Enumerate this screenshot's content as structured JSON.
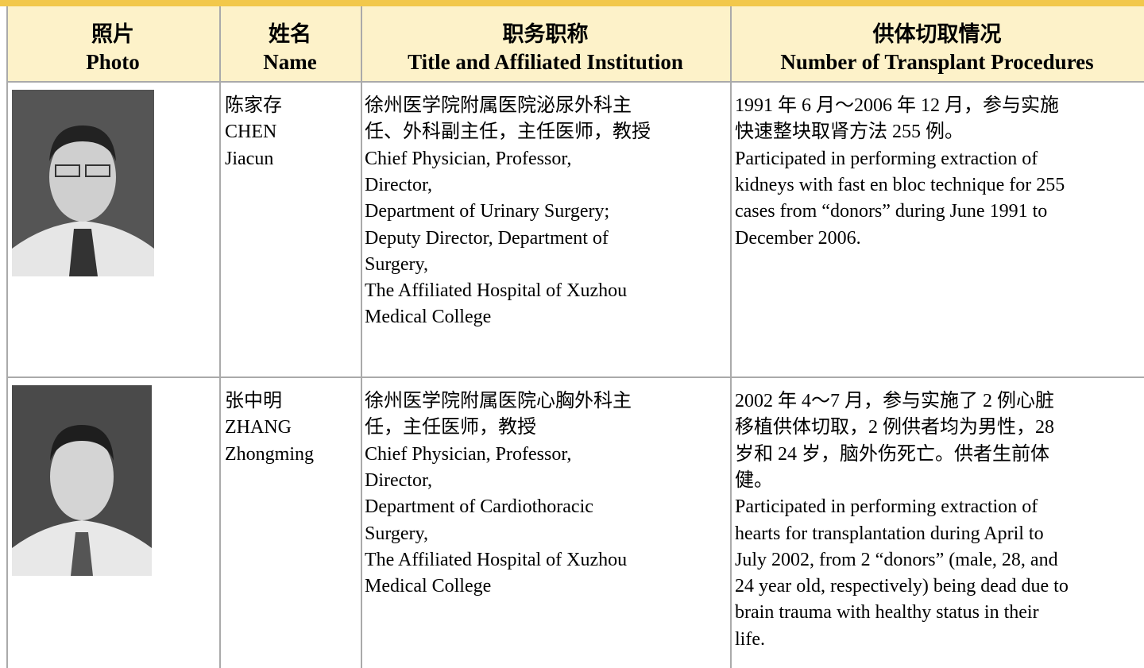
{
  "table": {
    "header": [
      [
        "照片",
        "Photo"
      ],
      [
        "姓名",
        "Name"
      ],
      [
        "职务职称",
        "Title and Affiliated Institution"
      ],
      [
        "供体切取情况",
        "Number of Transplant Procedures"
      ]
    ],
    "rows": [
      {
        "name": [
          "陈家存",
          "CHEN",
          "Jiacun"
        ],
        "title": [
          "徐州医学院附属医院泌尿外科主",
          "任、外科副主任，主任医师，教授",
          "Chief Physician, Professor,",
          "Director,",
          "Department of Urinary Surgery;",
          "Deputy Director, Department of",
          "Surgery,",
          "The Affiliated Hospital of Xuzhou",
          "Medical College"
        ],
        "procedures": [
          "1991 年 6 月～2006 年 12 月，参与实施",
          "快速整块取肾方法 255 例。",
          "Participated in performing extraction of",
          "kidneys with fast en bloc technique for 255",
          "cases from “donors” during June 1991 to",
          "December 2006."
        ]
      },
      {
        "name": [
          "张中明",
          "ZHANG",
          "Zhongming"
        ],
        "title": [
          "徐州医学院附属医院心胸外科主",
          "任，主任医师，教授",
          "Chief Physician, Professor,",
          "Director,",
          "Department of Cardiothoracic",
          "Surgery,",
          "The Affiliated Hospital of Xuzhou",
          "Medical College"
        ],
        "procedures": [
          "2002 年 4～7 月，参与实施了 2 例心脏",
          "移植供体切取，2 例供者均为男性，28",
          "岁和 24 岁，脑外伤死亡。供者生前体",
          "健。",
          "Participated in performing extraction of",
          "hearts for transplantation during April to",
          "July 2002, from 2 “donors” (male, 28, and",
          "24 year old, respectively) being dead due to",
          "brain trauma with healthy status in their",
          "life."
        ]
      }
    ]
  }
}
